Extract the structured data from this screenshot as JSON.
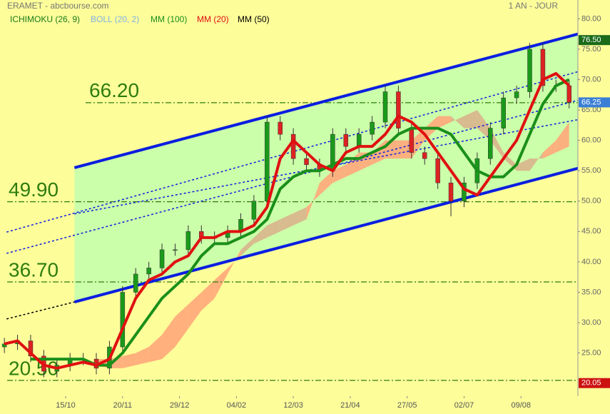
{
  "chart_data": {
    "type": "candlestick",
    "title": "ERAMET - abcbourse.com",
    "subtitle": "1 AN - JOUR",
    "x": [
      2,
      8,
      14,
      20,
      26,
      32,
      38,
      44,
      50,
      56,
      62,
      68,
      74,
      80,
      86,
      92,
      98,
      104,
      110,
      116,
      122,
      128,
      134,
      140,
      146,
      152,
      158,
      164,
      170,
      176,
      182,
      188,
      194,
      200,
      206,
      212,
      218,
      224,
      230,
      236,
      242,
      248,
      254,
      260
    ],
    "xlim": [
      0,
      264
    ],
    "xticks": [
      {
        "value": 30,
        "label": "15/10"
      },
      {
        "value": 56,
        "label": "20/11"
      },
      {
        "value": 82,
        "label": "29/12"
      },
      {
        "value": 108,
        "label": "04/02"
      },
      {
        "value": 134,
        "label": "12/03"
      },
      {
        "value": 160,
        "label": "21/04"
      },
      {
        "value": 186,
        "label": "27/05"
      },
      {
        "value": 212,
        "label": "02/07"
      },
      {
        "value": 238,
        "label": "09/08"
      }
    ],
    "ylim": [
      17.9,
      83.1
    ],
    "yticks": [
      {
        "value": 25,
        "label": "25.00"
      },
      {
        "value": 30,
        "label": "30.00"
      },
      {
        "value": 35,
        "label": "35.00"
      },
      {
        "value": 40,
        "label": "40.00"
      },
      {
        "value": 45,
        "label": "45.00"
      },
      {
        "value": 50,
        "label": "50.00"
      },
      {
        "value": 55,
        "label": "55.00"
      },
      {
        "value": 60,
        "label": "60.00"
      },
      {
        "value": 65,
        "label": "65.00"
      },
      {
        "value": 70,
        "label": "70.00"
      },
      {
        "value": 75,
        "label": "75.00"
      },
      {
        "value": 80,
        "label": "80.00"
      }
    ],
    "open": [
      26,
      26.5,
      27,
      24.5,
      22,
      23,
      24,
      24,
      22.5,
      26,
      35,
      38,
      39,
      42,
      42,
      45,
      44,
      44,
      45,
      47,
      50,
      63,
      61,
      57,
      56,
      55,
      61,
      59,
      61,
      63,
      68,
      62,
      58,
      57,
      53,
      50,
      53,
      57,
      62,
      67,
      68,
      75,
      69,
      69
    ],
    "high": [
      27.5,
      28,
      28,
      25.5,
      24,
      25,
      25,
      25,
      27,
      36,
      39,
      40,
      43,
      43,
      46,
      46,
      45,
      46,
      48,
      51,
      64,
      64,
      62,
      58,
      57,
      62,
      62,
      62,
      64,
      69,
      69,
      63,
      59,
      58,
      54,
      54,
      58,
      63,
      68,
      69,
      76,
      76,
      70,
      70
    ],
    "low": [
      25,
      25.5,
      23.5,
      21,
      21,
      22,
      23,
      21.5,
      21.5,
      25,
      34,
      37,
      38,
      41,
      41,
      43,
      43,
      43,
      44,
      46,
      49,
      60,
      56,
      55,
      54,
      54,
      58,
      58,
      60,
      62,
      61,
      57,
      56,
      52,
      47.5,
      49,
      52,
      56,
      61,
      66,
      67,
      68,
      68,
      65.25
    ],
    "close": [
      26.5,
      27,
      24.5,
      22,
      23,
      24,
      24,
      22.5,
      26,
      35,
      38,
      39,
      42,
      42,
      45,
      44,
      44,
      45,
      47,
      50,
      63,
      61,
      57,
      56,
      55,
      61,
      59,
      61,
      63,
      68,
      62,
      58,
      57,
      53,
      50,
      53,
      57,
      62,
      67,
      68,
      75,
      69,
      69,
      66.25
    ],
    "up_color": "#1a9a1a",
    "down_color": "#dd2222",
    "series": [
      {
        "name": "MM (100)",
        "color": "#1a8f1a",
        "values": [
          null,
          null,
          24,
          24,
          24,
          24,
          24,
          23,
          23,
          25,
          28,
          31,
          34,
          36,
          38,
          41,
          43,
          43,
          44,
          45,
          47,
          52,
          54,
          55,
          55,
          56,
          57,
          57,
          58,
          59,
          61,
          62,
          62,
          62,
          61,
          58,
          55,
          54,
          54,
          56,
          61,
          66,
          69,
          70
        ]
      },
      {
        "name": "MM (20)",
        "color": "#e01010",
        "values": [
          26.5,
          27,
          25,
          23,
          22.5,
          23,
          23.5,
          23,
          24,
          29,
          34,
          37,
          38,
          40,
          41,
          44,
          44,
          45,
          45,
          46,
          49,
          57,
          60,
          58,
          56,
          55,
          58,
          59,
          59,
          61,
          64,
          63,
          61,
          58,
          55,
          52,
          51,
          54,
          57,
          60,
          65,
          70,
          71,
          69
        ]
      }
    ],
    "indicators": [
      {
        "name": "ICHIMOKU (26, 9)",
        "color": "#1a7a1a"
      },
      {
        "name": "BOLL (20, 2)",
        "color": "#7fb2e5"
      },
      {
        "name": "MM (50)",
        "color": "#000000"
      }
    ],
    "ichimoku": {
      "up_color": "#ffa77a",
      "down_color": "#d9b48c",
      "span_a": [
        null,
        null,
        null,
        null,
        null,
        null,
        null,
        24,
        24,
        24.5,
        25,
        26,
        28,
        31,
        33,
        35,
        37,
        39,
        41,
        43,
        44,
        45,
        46,
        47,
        53,
        55,
        56,
        58,
        58,
        60,
        60,
        60,
        62,
        64,
        64,
        62,
        62,
        60,
        57,
        55,
        55,
        58,
        60,
        63
      ],
      "span_b": [
        null,
        null,
        null,
        null,
        null,
        null,
        null,
        23,
        22.5,
        22.5,
        23,
        23.5,
        24,
        26,
        29,
        32,
        34,
        38,
        42,
        44,
        46,
        47,
        48,
        49,
        51,
        53,
        54,
        55,
        56,
        57,
        57,
        57,
        60,
        62,
        63,
        64,
        65,
        62,
        58,
        56,
        57,
        57,
        58,
        59
      ]
    },
    "channel_color": "#ccffaa",
    "trendlines": [
      {
        "x": [
          34,
          264
        ],
        "y": [
          55.5,
          77.5
        ],
        "color": "#0a1ee0",
        "style": "solid"
      },
      {
        "x": [
          34,
          264
        ],
        "y": [
          33.4,
          55.4
        ],
        "color": "#0a1ee0",
        "style": "solid"
      },
      {
        "x": [
          3,
          264
        ],
        "y": [
          44.9,
          71.3
        ],
        "color": "#0a1ee0",
        "style": "dotted"
      },
      {
        "x": [
          3,
          264
        ],
        "y": [
          41.4,
          66.6
        ],
        "color": "#0a1ee0",
        "style": "dotted"
      },
      {
        "x": [
          34,
          264
        ],
        "y": [
          47.9,
          63.4
        ],
        "color": "#0a1ee0",
        "style": "dotted"
      },
      {
        "x": [
          3,
          34
        ],
        "y": [
          30.6,
          33.4
        ],
        "color": "#000000",
        "style": "dotted"
      }
    ],
    "levels": [
      {
        "value": 66.2,
        "label": "66.20"
      },
      {
        "value": 49.9,
        "label": "49.90"
      },
      {
        "value": 36.7,
        "label": "36.70"
      },
      {
        "value": 20.5,
        "label": "20.50"
      }
    ],
    "level_color": "#2e7d0e",
    "price_tags": [
      {
        "value": 76.5,
        "label": "76.50",
        "color": "#1a6a1a"
      },
      {
        "value": 66.25,
        "label": "66.25",
        "color": "#3a7fd5"
      },
      {
        "value": 20.05,
        "label": "20.05",
        "color": "#cc1111"
      }
    ]
  }
}
